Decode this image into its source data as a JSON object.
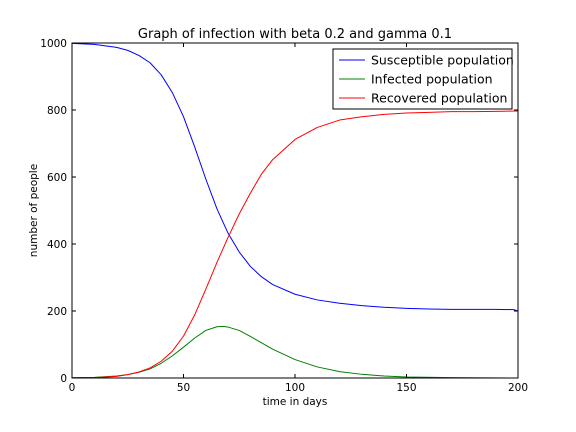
{
  "chart_data": {
    "type": "line",
    "title": "Graph of infection with beta 0.2 and gamma 0.1",
    "xlabel": "time in days",
    "ylabel": "number of people",
    "xlim": [
      0,
      200
    ],
    "ylim": [
      0,
      1000
    ],
    "xticks": [
      0,
      50,
      100,
      150,
      200
    ],
    "yticks": [
      0,
      200,
      400,
      600,
      800,
      1000
    ],
    "grid": false,
    "legend_position": "top-right",
    "series": [
      {
        "name": "Susceptible population",
        "color": "#0000ff",
        "x": [
          0,
          10,
          20,
          25,
          30,
          35,
          40,
          45,
          50,
          55,
          60,
          65,
          70,
          75,
          80,
          85,
          90,
          100,
          110,
          120,
          130,
          140,
          150,
          160,
          170,
          180,
          190,
          198,
          200
        ],
        "y": [
          999,
          996,
          987,
          978,
          963,
          941,
          905,
          852,
          780,
          690,
          594,
          505,
          432,
          376,
          333,
          302,
          279,
          250,
          233,
          223,
          216,
          211,
          208,
          206,
          205,
          205,
          205,
          204,
          200
        ]
      },
      {
        "name": "Infected population",
        "color": "#008000",
        "x": [
          0,
          10,
          20,
          25,
          30,
          35,
          40,
          45,
          50,
          55,
          60,
          65,
          68,
          70,
          75,
          80,
          85,
          90,
          100,
          110,
          120,
          130,
          140,
          150,
          170,
          200
        ],
        "y": [
          1,
          2,
          6,
          10,
          17,
          27,
          44,
          66,
          92,
          119,
          142,
          153,
          154,
          152,
          142,
          124,
          105,
          86,
          55,
          33,
          19,
          11,
          6,
          3,
          1,
          0
        ]
      },
      {
        "name": "Recovered population",
        "color": "#ff0000",
        "x": [
          0,
          10,
          20,
          25,
          30,
          35,
          40,
          45,
          50,
          55,
          60,
          65,
          70,
          75,
          80,
          85,
          90,
          100,
          110,
          120,
          130,
          140,
          150,
          160,
          170,
          180,
          190,
          200
        ],
        "y": [
          0,
          1,
          5,
          10,
          18,
          30,
          50,
          80,
          125,
          188,
          265,
          345,
          420,
          490,
          552,
          609,
          652,
          712,
          748,
          770,
          780,
          787,
          791,
          793,
          795,
          795,
          796,
          797
        ]
      }
    ]
  }
}
